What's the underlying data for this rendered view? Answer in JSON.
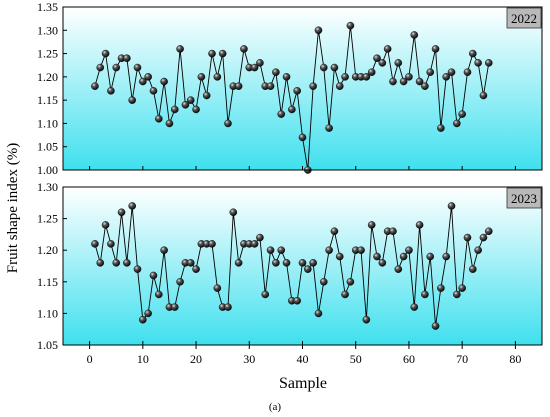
{
  "figure": {
    "ylabel": "Fruit shape index (%)",
    "xlabel": "Sample",
    "caption": "(a)"
  },
  "chart_data": [
    {
      "type": "line",
      "panel_label": "2022",
      "x": [
        1,
        2,
        3,
        4,
        5,
        6,
        7,
        8,
        9,
        10,
        11,
        12,
        13,
        14,
        15,
        16,
        17,
        18,
        19,
        20,
        21,
        22,
        23,
        24,
        25,
        26,
        27,
        28,
        29,
        30,
        31,
        32,
        33,
        34,
        35,
        36,
        37,
        38,
        39,
        40,
        41,
        42,
        43,
        44,
        45,
        46,
        47,
        48,
        49,
        50,
        51,
        52,
        53,
        54,
        55,
        56,
        57,
        58,
        59,
        60,
        61,
        62,
        63,
        64,
        65,
        66,
        67,
        68,
        69,
        70,
        71,
        72,
        73,
        74,
        75
      ],
      "y": [
        1.18,
        1.22,
        1.25,
        1.17,
        1.22,
        1.24,
        1.24,
        1.15,
        1.22,
        1.19,
        1.2,
        1.17,
        1.11,
        1.19,
        1.1,
        1.13,
        1.26,
        1.14,
        1.15,
        1.13,
        1.2,
        1.16,
        1.25,
        1.2,
        1.25,
        1.1,
        1.18,
        1.18,
        1.26,
        1.22,
        1.22,
        1.23,
        1.18,
        1.18,
        1.21,
        1.12,
        1.2,
        1.13,
        1.17,
        1.07,
        1.0,
        1.18,
        1.3,
        1.22,
        1.09,
        1.22,
        1.18,
        1.2,
        1.31,
        1.2,
        1.2,
        1.2,
        1.21,
        1.24,
        1.23,
        1.26,
        1.19,
        1.23,
        1.19,
        1.2,
        1.29,
        1.19,
        1.18,
        1.21,
        1.26,
        1.09,
        1.2,
        1.21,
        1.1,
        1.12,
        1.21,
        1.25,
        1.23,
        1.16,
        1.23
      ],
      "ylim": [
        1.0,
        1.35
      ],
      "yticks": [
        1.0,
        1.05,
        1.1,
        1.15,
        1.2,
        1.25,
        1.3,
        1.35
      ],
      "yticklabels": [
        "1.00",
        "1.05",
        "1.10",
        "1.15",
        "1.20",
        "1.25",
        "1.30",
        "1.35"
      ]
    },
    {
      "type": "line",
      "panel_label": "2023",
      "x": [
        1,
        2,
        3,
        4,
        5,
        6,
        7,
        8,
        9,
        10,
        11,
        12,
        13,
        14,
        15,
        16,
        17,
        18,
        19,
        20,
        21,
        22,
        23,
        24,
        25,
        26,
        27,
        28,
        29,
        30,
        31,
        32,
        33,
        34,
        35,
        36,
        37,
        38,
        39,
        40,
        41,
        42,
        43,
        44,
        45,
        46,
        47,
        48,
        49,
        50,
        51,
        52,
        53,
        54,
        55,
        56,
        57,
        58,
        59,
        60,
        61,
        62,
        63,
        64,
        65,
        66,
        67,
        68,
        69,
        70,
        71,
        72,
        73,
        74,
        75
      ],
      "y": [
        1.21,
        1.18,
        1.24,
        1.21,
        1.18,
        1.26,
        1.18,
        1.27,
        1.17,
        1.09,
        1.1,
        1.16,
        1.13,
        1.2,
        1.11,
        1.11,
        1.15,
        1.18,
        1.18,
        1.17,
        1.21,
        1.21,
        1.21,
        1.14,
        1.11,
        1.11,
        1.26,
        1.18,
        1.21,
        1.21,
        1.21,
        1.22,
        1.13,
        1.2,
        1.18,
        1.2,
        1.18,
        1.12,
        1.12,
        1.18,
        1.17,
        1.18,
        1.1,
        1.15,
        1.2,
        1.23,
        1.19,
        1.13,
        1.15,
        1.2,
        1.2,
        1.09,
        1.24,
        1.19,
        1.18,
        1.23,
        1.23,
        1.17,
        1.19,
        1.2,
        1.11,
        1.24,
        1.13,
        1.19,
        1.08,
        1.14,
        1.19,
        1.27,
        1.13,
        1.14,
        1.22,
        1.17,
        1.2,
        1.22,
        1.23
      ],
      "ylim": [
        1.05,
        1.3
      ],
      "yticks": [
        1.05,
        1.1,
        1.15,
        1.2,
        1.25,
        1.3
      ],
      "yticklabels": [
        "1.05",
        "1.10",
        "1.15",
        "1.20",
        "1.25",
        "1.30"
      ]
    }
  ],
  "x_axis": {
    "xlim": [
      -5,
      85
    ],
    "xticks": [
      0,
      10,
      20,
      30,
      40,
      50,
      60,
      70,
      80
    ],
    "xticklabels": [
      "0",
      "10",
      "20",
      "30",
      "40",
      "50",
      "60",
      "70",
      "80"
    ]
  },
  "colors": {
    "gradient_top": "#ffffff",
    "gradient_bottom": "#3fe0ee",
    "line": "#000000",
    "marker": "#0a0a0a",
    "label_box": "#b9b9b9"
  }
}
